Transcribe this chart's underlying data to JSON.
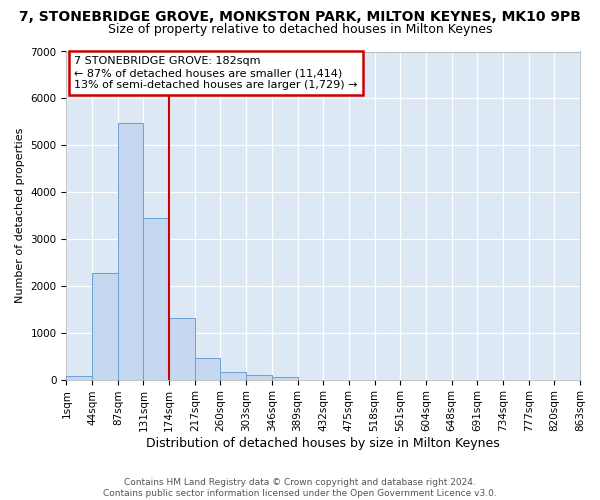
{
  "title": "7, STONEBRIDGE GROVE, MONKSTON PARK, MILTON KEYNES, MK10 9PB",
  "subtitle": "Size of property relative to detached houses in Milton Keynes",
  "xlabel": "Distribution of detached houses by size in Milton Keynes",
  "ylabel": "Number of detached properties",
  "footer_line1": "Contains HM Land Registry data © Crown copyright and database right 2024.",
  "footer_line2": "Contains public sector information licensed under the Open Government Licence v3.0.",
  "annotation_line1": "7 STONEBRIDGE GROVE: 182sqm",
  "annotation_line2": "← 87% of detached houses are smaller (11,414)",
  "annotation_line3": "13% of semi-detached houses are larger (1,729) →",
  "bar_values": [
    75,
    2280,
    5470,
    3450,
    1310,
    460,
    155,
    90,
    45,
    0,
    0,
    0,
    0,
    0,
    0,
    0,
    0,
    0,
    0,
    0
  ],
  "categories": [
    "1sqm",
    "44sqm",
    "87sqm",
    "131sqm",
    "174sqm",
    "217sqm",
    "260sqm",
    "303sqm",
    "346sqm",
    "389sqm",
    "432sqm",
    "475sqm",
    "518sqm",
    "561sqm",
    "604sqm",
    "648sqm",
    "691sqm",
    "734sqm",
    "777sqm",
    "820sqm",
    "863sqm"
  ],
  "bar_color": "#c5d8f0",
  "bar_edge_color": "#6aa0d4",
  "bg_color": "#dde8f5",
  "grid_color": "#ffffff",
  "vline_color": "#cc0000",
  "vline_x": 3.5,
  "annotation_box_edgecolor": "#cc0000",
  "fig_bg": "#ffffff",
  "ylim": [
    0,
    7000
  ],
  "yticks": [
    0,
    1000,
    2000,
    3000,
    4000,
    5000,
    6000,
    7000
  ],
  "title_fontsize": 10,
  "subtitle_fontsize": 9,
  "xlabel_fontsize": 9,
  "ylabel_fontsize": 8,
  "tick_fontsize": 7.5,
  "annotation_fontsize": 8,
  "footer_fontsize": 6.5
}
